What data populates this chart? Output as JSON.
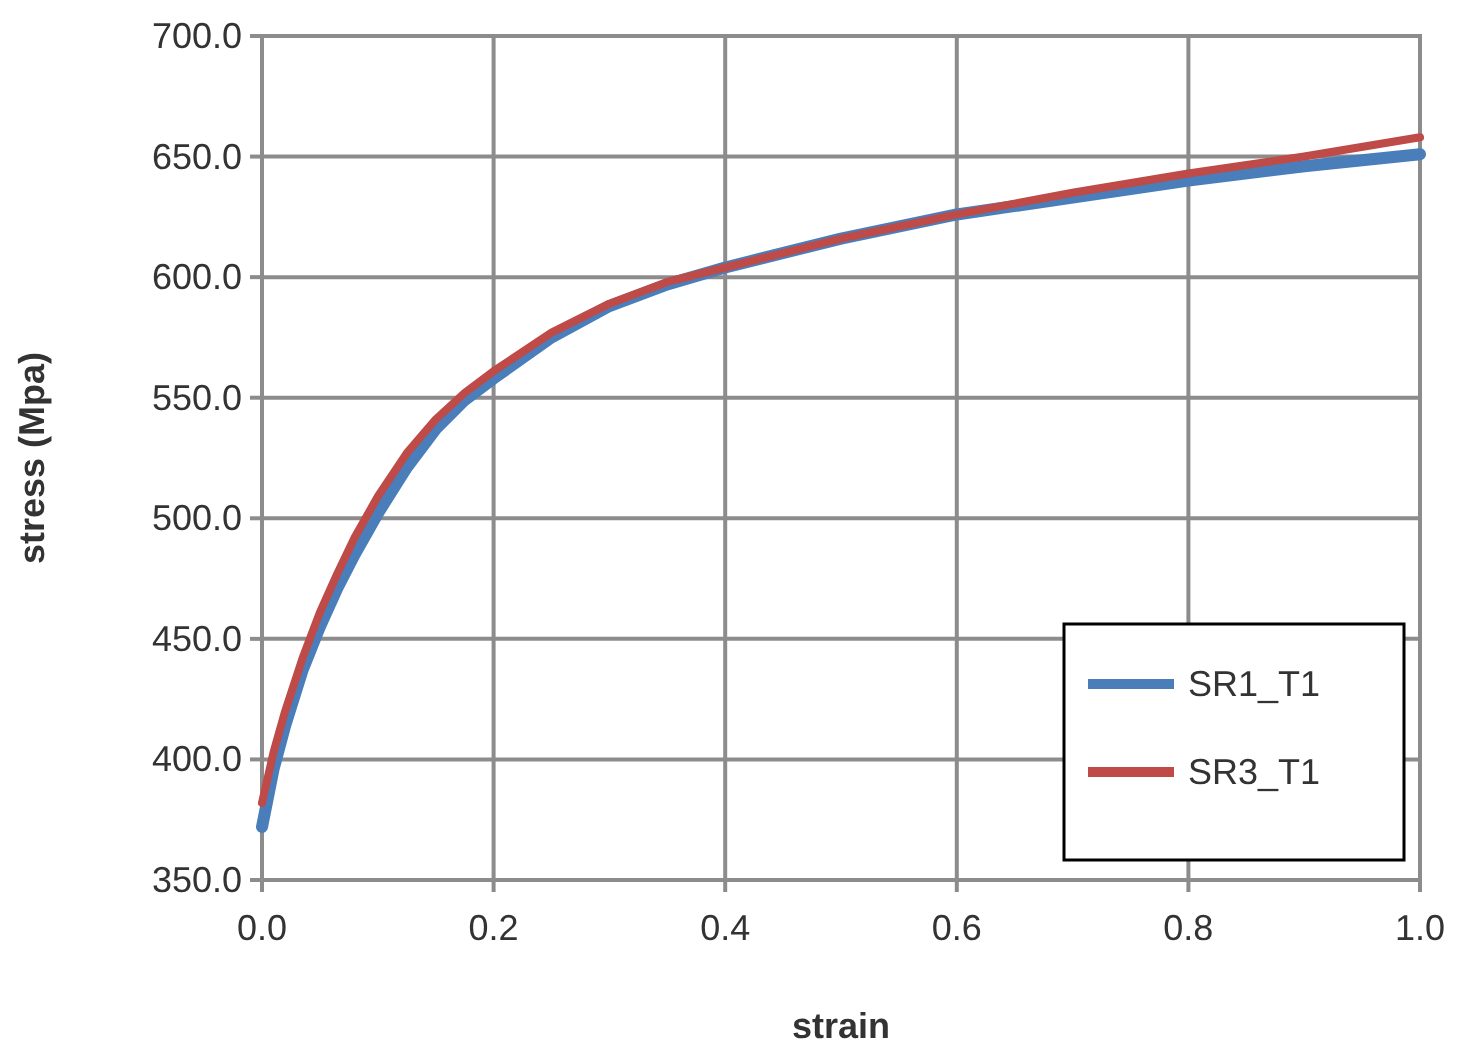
{
  "chart_data": {
    "type": "line",
    "xlabel": "strain",
    "ylabel": "stress (Mpa)",
    "xlim": [
      0,
      1
    ],
    "xticks": [
      {
        "value": 0,
        "label": "0.0"
      },
      {
        "value": 0.2,
        "label": "0.2"
      },
      {
        "value": 0.4,
        "label": "0.4"
      },
      {
        "value": 0.6,
        "label": "0.6"
      },
      {
        "value": 0.8,
        "label": "0.8"
      },
      {
        "value": 1,
        "label": "1.0"
      }
    ],
    "ylim": [
      350,
      700
    ],
    "yticks": [
      {
        "value": 350,
        "label": "350.0"
      },
      {
        "value": 400,
        "label": "400.0"
      },
      {
        "value": 450,
        "label": "450.0"
      },
      {
        "value": 500,
        "label": "500.0"
      },
      {
        "value": 550,
        "label": "550.0"
      },
      {
        "value": 600,
        "label": "600.0"
      },
      {
        "value": 650,
        "label": "650.0"
      },
      {
        "value": 700,
        "label": "700.0"
      }
    ],
    "grid": true,
    "legend": "bottom right",
    "marker": "none",
    "line_style": "solid",
    "x": [
      0,
      0.01,
      0.02,
      0.035,
      0.05,
      0.065,
      0.08,
      0.1,
      0.125,
      0.15,
      0.175,
      0.2,
      0.25,
      0.3,
      0.35,
      0.4,
      0.5,
      0.6,
      0.7,
      0.8,
      0.9,
      1.0
    ],
    "series": [
      {
        "name": "SR1_T1",
        "color": "#4a7ebb",
        "values": [
          372,
          396,
          414,
          437,
          455,
          471,
          485,
          502,
          521,
          537,
          549,
          558,
          575,
          588,
          597,
          604,
          616,
          626,
          633,
          640,
          646,
          651
        ]
      },
      {
        "name": "SR3_T1",
        "color": "#be4b48",
        "values": [
          382,
          403,
          420,
          442,
          461,
          477,
          492,
          509,
          527,
          541,
          552,
          561,
          577,
          589,
          598,
          604,
          616,
          626,
          635,
          643,
          650,
          658
        ]
      }
    ]
  }
}
